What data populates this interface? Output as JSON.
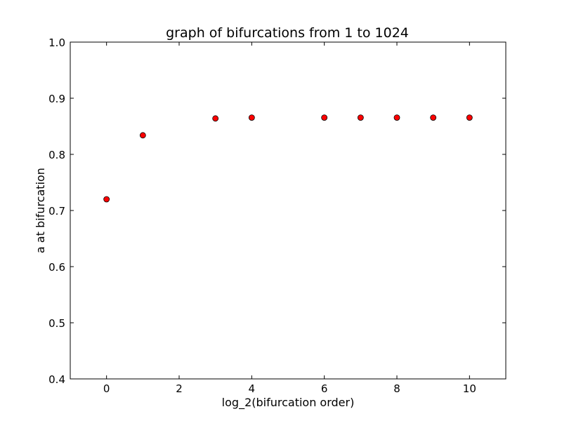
{
  "chart_data": {
    "type": "scatter",
    "title": "graph of bifurcations from 1 to 1024",
    "xlabel": "log_2(bifurcation order)",
    "ylabel": "a at bifurcation",
    "xlim": [
      -1,
      11
    ],
    "ylim": [
      0.4,
      1.0
    ],
    "xticks": [
      0,
      2,
      4,
      6,
      8,
      10
    ],
    "xtick_labels": [
      "0",
      "2",
      "4",
      "6",
      "8",
      "10"
    ],
    "yticks": [
      0.4,
      0.5,
      0.6,
      0.7,
      0.8,
      0.9,
      1.0
    ],
    "ytick_labels": [
      "0.4",
      "0.5",
      "0.6",
      "0.7",
      "0.8",
      "0.9",
      "1.0"
    ],
    "grid": false,
    "marker_color": "#ff0000",
    "marker_edge_color": "#000000",
    "series": [
      {
        "x": [
          0,
          1,
          3,
          4,
          6,
          7,
          8,
          9,
          10
        ],
        "y": [
          0.72,
          0.834,
          0.864,
          0.8655,
          0.8655,
          0.8655,
          0.8655,
          0.8655,
          0.8655
        ]
      }
    ]
  }
}
